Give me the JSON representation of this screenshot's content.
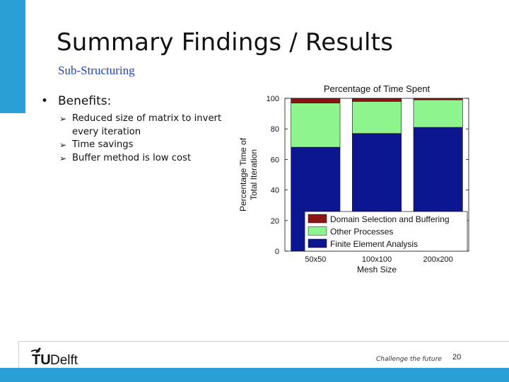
{
  "slide": {
    "title": "Summary Findings / Results",
    "subtitle": "Sub-Structuring",
    "bullet": "Benefits:",
    "sub_bullets": [
      "Reduced size of matrix to invert every iteration",
      "Time savings",
      "Buffer method is low cost"
    ]
  },
  "footer": {
    "logo_tu": "TU",
    "logo_delft": "Delft",
    "tagline": "Challenge the future",
    "page_number": "20"
  },
  "colors": {
    "accent": "#2a9fd6",
    "domain": "#8b1414",
    "other": "#8ef58e",
    "fea": "#0b1690"
  },
  "chart_data": {
    "type": "bar",
    "stacked": true,
    "title": "Percentage of Time Spent",
    "xlabel": "Mesh Size",
    "ylabel": "Percentage Time of Total Iteration",
    "ylim": [
      0,
      100
    ],
    "yticks": [
      0,
      20,
      40,
      60,
      80,
      100
    ],
    "categories": [
      "50x50",
      "100x100",
      "200x200"
    ],
    "series": [
      {
        "name": "Finite Element Analysis",
        "color": "#0b1690",
        "values": [
          68,
          77,
          81
        ]
      },
      {
        "name": "Other Processes",
        "color": "#8ef58e",
        "values": [
          29,
          21,
          18
        ]
      },
      {
        "name": "Domain Selection and Buffering",
        "color": "#8b1414",
        "values": [
          3,
          2,
          1
        ]
      }
    ],
    "legend_order": [
      "Domain Selection and Buffering",
      "Other Processes",
      "Finite Element Analysis"
    ],
    "legend_position": "lower-right"
  }
}
